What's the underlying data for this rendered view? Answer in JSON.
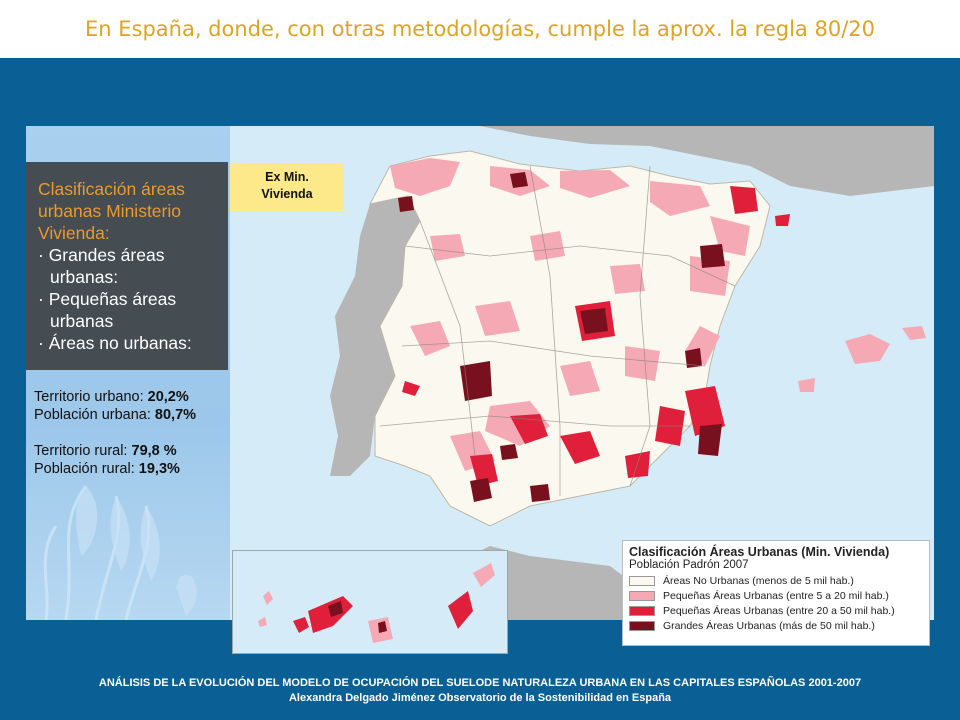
{
  "slide": {
    "title": "En España, donde, con otras metodologías, cumple la aprox. la regla 80/20"
  },
  "panel": {
    "heading_lines": [
      "Clasificación áreas",
      "urbanas Ministerio",
      "Vivienda:"
    ],
    "bullets": [
      {
        "l1": "· Grandes áreas",
        "l2": "urbanas:"
      },
      {
        "l1": "· Pequeñas áreas",
        "l2": "urbanas"
      },
      {
        "l1": "· Áreas no urbanas:",
        "l2": ""
      }
    ],
    "stats": {
      "urban_territory_label": "Territorio urbano: ",
      "urban_territory_value": "20,2%",
      "urban_population_label": "Población urbana: ",
      "urban_population_value": "80,7%",
      "rural_territory_label": "Territorio rural: ",
      "rural_territory_value": "79,8 %",
      "rural_population_label": "Población rural: ",
      "rural_population_value": "19,3%"
    }
  },
  "map": {
    "tag_line1": "Ex Min.",
    "tag_line2": "Vivienda",
    "colors": {
      "sea": "#d5ecf8",
      "land_other": "#b6b6b6",
      "no_urban": "#fbf9ef",
      "small_5_20": "#f5a9b5",
      "small_20_50": "#e0203a",
      "large_50": "#78101e"
    }
  },
  "legend": {
    "title": "Clasificación Áreas Urbanas (Min. Vivienda)",
    "subtitle": "Población Padrón 2007",
    "items": [
      {
        "label": "Áreas No Urbanas (menos de 5 mil hab.)",
        "color": "#fbf9ef"
      },
      {
        "label": "Pequeñas Áreas Urbanas (entre 5 a 20 mil hab.)",
        "color": "#f5a9b5"
      },
      {
        "label": "Pequeñas Áreas Urbanas (entre 20 a 50 mil hab.)",
        "color": "#e0203a"
      },
      {
        "label": "Grandes Áreas Urbanas (más de 50 mil hab.)",
        "color": "#78101e"
      }
    ]
  },
  "footer": {
    "line1": "ANÁLISIS DE LA EVOLUCIÓN DEL MODELO DE OCUPACIÓN DEL SUELODE NATURALEZA URBANA EN LAS CAPITALES ESPAÑOLAS 2001-2007",
    "line2": "Alexandra Delgado  Jiménez Observatorio  de la Sostenibilidad en España"
  }
}
